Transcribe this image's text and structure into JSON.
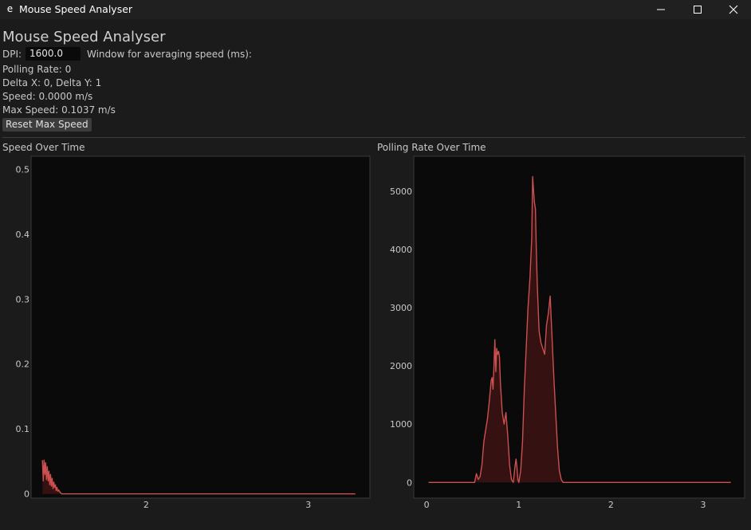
{
  "window": {
    "title": "Mouse Speed Analyser",
    "icon": "app-icon",
    "icon_glyph": "e",
    "controls": [
      "minimize-icon",
      "maximize-icon",
      "close-icon"
    ]
  },
  "app": {
    "heading": "Mouse Speed Analyser",
    "dpi_label": "DPI:",
    "dpi_value": "1600.0",
    "window_label": "Window for averaging speed (ms):",
    "polling_rate": "Polling Rate: 0",
    "delta": "Delta X: 0, Delta Y: 1",
    "speed": "Speed: 0.0000 m/s",
    "max_speed": "Max Speed: 0.1037 m/s",
    "reset_button": "Reset Max Speed"
  },
  "colors": {
    "background": "#1b1b1b",
    "plot_background": "#0a0a0a",
    "line": "#cc5050",
    "fill": "#3a1212",
    "text": "#c8c8c8"
  },
  "chart_data": [
    {
      "type": "area",
      "title": "Speed Over Time",
      "xlabel": "",
      "ylabel": "",
      "x_ticks": [
        "2",
        "3"
      ],
      "y_ticks": [
        "0",
        "0.1",
        "0.2",
        "0.3",
        "0.4",
        "0.5"
      ],
      "xlim": [
        1.29,
        3.38
      ],
      "ylim": [
        -0.0065,
        0.52
      ],
      "grid": false,
      "series": [
        {
          "x": [
            1.36,
            1.365,
            1.37,
            1.375,
            1.38,
            1.385,
            1.39,
            1.395,
            1.4,
            1.405,
            1.41,
            1.415,
            1.42,
            1.425,
            1.43,
            1.435,
            1.44,
            1.445,
            1.45,
            1.455,
            1.46,
            1.47,
            1.48,
            1.5,
            2.0,
            2.5,
            3.0,
            3.29
          ],
          "y": [
            0.052,
            0.02,
            0.052,
            0.03,
            0.048,
            0.022,
            0.042,
            0.02,
            0.035,
            0.014,
            0.03,
            0.012,
            0.024,
            0.008,
            0.018,
            0.01,
            0.014,
            0.005,
            0.01,
            0.004,
            0.006,
            0.002,
            0.0,
            0.0,
            0.0,
            0.0,
            0.0,
            0.0
          ]
        }
      ]
    },
    {
      "type": "area",
      "title": "Polling Rate Over Time",
      "xlabel": "",
      "ylabel": "",
      "x_ticks": [
        "0",
        "1",
        "2",
        "3"
      ],
      "y_ticks": [
        "0",
        "1000",
        "2000",
        "3000",
        "4000",
        "5000"
      ],
      "xlim": [
        -0.14,
        3.45
      ],
      "ylim": [
        -270,
        5600
      ],
      "grid": false,
      "series": [
        {
          "x": [
            0.02,
            0.3,
            0.52,
            0.54,
            0.56,
            0.58,
            0.6,
            0.62,
            0.64,
            0.66,
            0.68,
            0.7,
            0.71,
            0.72,
            0.73,
            0.74,
            0.75,
            0.76,
            0.77,
            0.78,
            0.79,
            0.8,
            0.82,
            0.84,
            0.86,
            0.88,
            0.9,
            0.92,
            0.94,
            0.96,
            0.97,
            0.98,
            0.99,
            1.0,
            1.02,
            1.04,
            1.06,
            1.08,
            1.1,
            1.12,
            1.14,
            1.15,
            1.16,
            1.17,
            1.18,
            1.19,
            1.2,
            1.22,
            1.24,
            1.26,
            1.28,
            1.3,
            1.32,
            1.34,
            1.36,
            1.38,
            1.4,
            1.42,
            1.44,
            1.46,
            1.48,
            1.5,
            1.52,
            1.6,
            2.0,
            2.5,
            3.0,
            3.3
          ],
          "y": [
            0,
            0,
            0,
            150,
            50,
            100,
            300,
            700,
            900,
            1100,
            1400,
            1750,
            1800,
            1600,
            2000,
            2450,
            1900,
            2300,
            2200,
            2250,
            2150,
            1700,
            1200,
            1000,
            1200,
            800,
            300,
            50,
            0,
            300,
            400,
            250,
            50,
            0,
            200,
            700,
            1600,
            2300,
            3000,
            3500,
            4200,
            5250,
            5000,
            4800,
            4700,
            4000,
            3400,
            2600,
            2400,
            2300,
            2200,
            2700,
            2900,
            3200,
            2500,
            1800,
            1200,
            600,
            200,
            50,
            0,
            0,
            0,
            0,
            0,
            0,
            0,
            0
          ]
        }
      ]
    }
  ]
}
